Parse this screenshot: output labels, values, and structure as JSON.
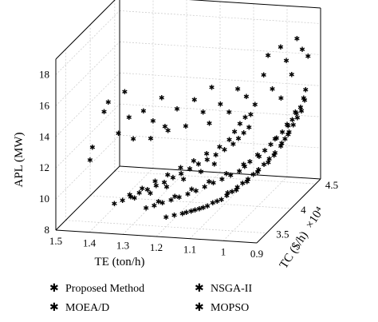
{
  "chart_data": {
    "type": "scatter3d",
    "title": "",
    "axes": {
      "x": {
        "label": "TE (ton/h)",
        "range": [
          0.9,
          1.5
        ],
        "ticks": [
          "1.5",
          "1.4",
          "1.3",
          "1.2",
          "1.1",
          "1",
          "0.9"
        ],
        "tick_values": [
          1.5,
          1.4,
          1.3,
          1.2,
          1.1,
          1.0,
          0.9
        ]
      },
      "y": {
        "label": "TC ($/h)",
        "multiplier": "×10⁴",
        "range": [
          3.3,
          4.6
        ],
        "ticks": [
          "3.5",
          "4",
          "4.5"
        ],
        "tick_values": [
          3.5,
          4.0,
          4.5
        ]
      },
      "z": {
        "label": "APL (MW)",
        "range": [
          8,
          19
        ],
        "ticks": [
          "8",
          "10",
          "12",
          "14",
          "16",
          "18"
        ],
        "tick_values": [
          8,
          10,
          12,
          14,
          16,
          18
        ]
      }
    },
    "grid": true,
    "legend_position": "bottom",
    "series": [
      {
        "name": "Proposed Method",
        "color": "#3aaa35",
        "marker": "asterisk",
        "points": [
          [
            1.2,
            3.5,
            8.6
          ],
          [
            1.18,
            3.53,
            8.65
          ],
          [
            1.16,
            3.56,
            8.7
          ],
          [
            1.14,
            3.6,
            8.75
          ],
          [
            1.12,
            3.63,
            8.85
          ],
          [
            1.1,
            3.66,
            8.95
          ],
          [
            1.09,
            3.7,
            9.05
          ],
          [
            1.07,
            3.74,
            9.15
          ],
          [
            1.06,
            3.78,
            9.3
          ],
          [
            1.05,
            3.82,
            9.45
          ],
          [
            1.04,
            3.86,
            9.6
          ],
          [
            1.03,
            3.9,
            9.75
          ],
          [
            1.02,
            3.94,
            9.9
          ],
          [
            1.01,
            3.98,
            10.1
          ],
          [
            1.0,
            4.02,
            10.3
          ],
          [
            0.99,
            4.06,
            10.5
          ],
          [
            0.98,
            4.1,
            10.75
          ],
          [
            0.97,
            4.15,
            11.0
          ],
          [
            0.96,
            4.2,
            11.3
          ],
          [
            0.955,
            4.25,
            11.6
          ],
          [
            0.95,
            4.3,
            11.9
          ],
          [
            0.945,
            4.35,
            12.2
          ],
          [
            0.94,
            4.4,
            12.5
          ],
          [
            0.935,
            4.45,
            12.8
          ],
          [
            1.15,
            3.57,
            8.75
          ],
          [
            1.11,
            3.64,
            8.9
          ],
          [
            1.08,
            3.72,
            9.1
          ],
          [
            1.04,
            3.84,
            9.5
          ],
          [
            1.0,
            4.0,
            10.2
          ],
          [
            0.97,
            4.13,
            10.9
          ],
          [
            0.95,
            4.28,
            11.8
          ],
          [
            1.13,
            3.61,
            8.8
          ],
          [
            1.06,
            3.8,
            9.4
          ],
          [
            1.02,
            3.92,
            9.8
          ],
          [
            0.98,
            4.08,
            10.6
          ],
          [
            0.96,
            4.22,
            11.4
          ]
        ]
      },
      {
        "name": "MOEA/D",
        "color": "#111111",
        "marker": "asterisk",
        "points": [
          [
            1.26,
            3.5,
            9.1
          ],
          [
            1.24,
            3.53,
            9.2
          ],
          [
            1.22,
            3.56,
            9.3
          ],
          [
            1.2,
            3.6,
            9.4
          ],
          [
            1.18,
            3.63,
            9.5
          ],
          [
            1.16,
            3.67,
            9.6
          ],
          [
            1.14,
            3.7,
            9.75
          ],
          [
            1.12,
            3.74,
            9.9
          ],
          [
            1.1,
            3.78,
            10.05
          ],
          [
            1.08,
            3.82,
            10.2
          ],
          [
            1.06,
            3.86,
            10.35
          ],
          [
            1.04,
            3.9,
            10.5
          ],
          [
            1.03,
            3.94,
            10.7
          ],
          [
            1.02,
            3.98,
            10.9
          ],
          [
            1.0,
            4.03,
            11.1
          ],
          [
            0.99,
            4.08,
            11.35
          ],
          [
            0.98,
            4.13,
            11.6
          ],
          [
            0.97,
            4.18,
            11.85
          ],
          [
            0.96,
            4.23,
            12.1
          ],
          [
            0.95,
            4.28,
            12.35
          ],
          [
            0.945,
            4.33,
            12.6
          ],
          [
            0.94,
            4.38,
            12.85
          ],
          [
            0.935,
            4.43,
            13.1
          ],
          [
            0.93,
            4.48,
            13.4
          ],
          [
            1.23,
            3.55,
            9.4
          ],
          [
            1.19,
            3.61,
            9.6
          ],
          [
            1.15,
            3.68,
            9.9
          ],
          [
            1.11,
            3.76,
            10.2
          ],
          [
            1.07,
            3.84,
            10.5
          ],
          [
            1.03,
            3.92,
            10.9
          ],
          [
            1.0,
            4.0,
            11.3
          ],
          [
            0.97,
            4.15,
            11.9
          ],
          [
            0.95,
            4.26,
            12.5
          ],
          [
            0.94,
            4.36,
            13.0
          ],
          [
            0.93,
            4.46,
            13.6
          ],
          [
            0.93,
            4.5,
            14.0
          ]
        ]
      },
      {
        "name": "NSGA-II",
        "color": "#2b2ba8",
        "marker": "asterisk",
        "points": [
          [
            1.34,
            3.4,
            9.6
          ],
          [
            1.32,
            3.43,
            9.75
          ],
          [
            1.3,
            3.46,
            9.9
          ],
          [
            1.28,
            3.5,
            10.05
          ],
          [
            1.26,
            3.53,
            10.2
          ],
          [
            1.24,
            3.57,
            10.35
          ],
          [
            1.22,
            3.6,
            10.5
          ],
          [
            1.2,
            3.64,
            10.7
          ],
          [
            1.18,
            3.67,
            10.9
          ],
          [
            1.16,
            3.71,
            11.1
          ],
          [
            1.14,
            3.75,
            11.3
          ],
          [
            1.12,
            3.79,
            11.5
          ],
          [
            1.1,
            3.83,
            11.7
          ],
          [
            1.08,
            3.87,
            11.95
          ],
          [
            1.06,
            3.91,
            12.2
          ],
          [
            1.05,
            3.95,
            12.45
          ],
          [
            1.04,
            3.99,
            12.7
          ],
          [
            1.03,
            4.03,
            12.95
          ],
          [
            1.3,
            3.44,
            10.1
          ],
          [
            1.27,
            3.49,
            10.4
          ],
          [
            1.24,
            3.55,
            10.7
          ],
          [
            1.21,
            3.6,
            11.0
          ],
          [
            1.18,
            3.66,
            11.3
          ],
          [
            1.15,
            3.72,
            11.6
          ],
          [
            1.12,
            3.78,
            11.9
          ],
          [
            1.09,
            3.84,
            12.2
          ],
          [
            1.07,
            3.9,
            12.5
          ],
          [
            1.06,
            3.94,
            12.9
          ],
          [
            1.05,
            3.98,
            13.3
          ],
          [
            1.04,
            4.02,
            13.6
          ],
          [
            1.29,
            3.47,
            9.8
          ],
          [
            1.25,
            3.52,
            10.0
          ],
          [
            1.21,
            3.58,
            10.3
          ],
          [
            1.17,
            3.65,
            10.6
          ],
          [
            1.13,
            3.73,
            10.9
          ],
          [
            1.1,
            3.8,
            11.2
          ]
        ]
      },
      {
        "name": "MOPSO",
        "color": "#d8431a",
        "marker": "asterisk",
        "points": [
          [
            1.42,
            3.5,
            12.8
          ],
          [
            1.43,
            3.52,
            11.9
          ],
          [
            1.4,
            3.6,
            14.8
          ],
          [
            1.38,
            3.55,
            15.6
          ],
          [
            1.36,
            3.62,
            13.4
          ],
          [
            1.34,
            3.7,
            14.2
          ],
          [
            1.32,
            3.65,
            13.0
          ],
          [
            1.3,
            3.72,
            14.6
          ],
          [
            1.28,
            3.78,
            13.8
          ],
          [
            1.26,
            3.82,
            15.2
          ],
          [
            1.24,
            3.75,
            13.6
          ],
          [
            1.22,
            3.86,
            14.4
          ],
          [
            1.2,
            3.9,
            13.2
          ],
          [
            1.18,
            3.94,
            14.8
          ],
          [
            1.16,
            3.98,
            13.9
          ],
          [
            1.14,
            4.02,
            15.4
          ],
          [
            1.12,
            4.06,
            14.2
          ],
          [
            1.1,
            4.1,
            13.6
          ],
          [
            1.08,
            4.14,
            15.0
          ],
          [
            1.06,
            4.18,
            14.4
          ],
          [
            1.04,
            4.22,
            13.8
          ],
          [
            1.02,
            4.26,
            15.6
          ],
          [
            1.0,
            4.3,
            14.6
          ],
          [
            0.98,
            4.34,
            13.9
          ],
          [
            0.97,
            4.38,
            16.2
          ],
          [
            0.96,
            4.42,
            15.2
          ],
          [
            0.95,
            4.46,
            17.4
          ],
          [
            0.94,
            4.5,
            16.6
          ],
          [
            0.93,
            4.55,
            16.0
          ],
          [
            1.35,
            3.68,
            15.9
          ],
          [
            1.25,
            3.88,
            12.9
          ],
          [
            1.15,
            4.04,
            13.0
          ],
          [
            1.05,
            4.2,
            13.2
          ],
          [
            1.01,
            4.28,
            16.8
          ],
          [
            0.99,
            4.4,
            17.0
          ],
          [
            1.29,
            3.8,
            12.6
          ]
        ]
      }
    ],
    "legend": [
      {
        "label": "Proposed Method",
        "color": "#3aaa35"
      },
      {
        "label": "NSGA-II",
        "color": "#2b2ba8"
      },
      {
        "label": "MOEA/D",
        "color": "#111111"
      },
      {
        "label": "MOPSO",
        "color": "#d8431a"
      }
    ]
  }
}
